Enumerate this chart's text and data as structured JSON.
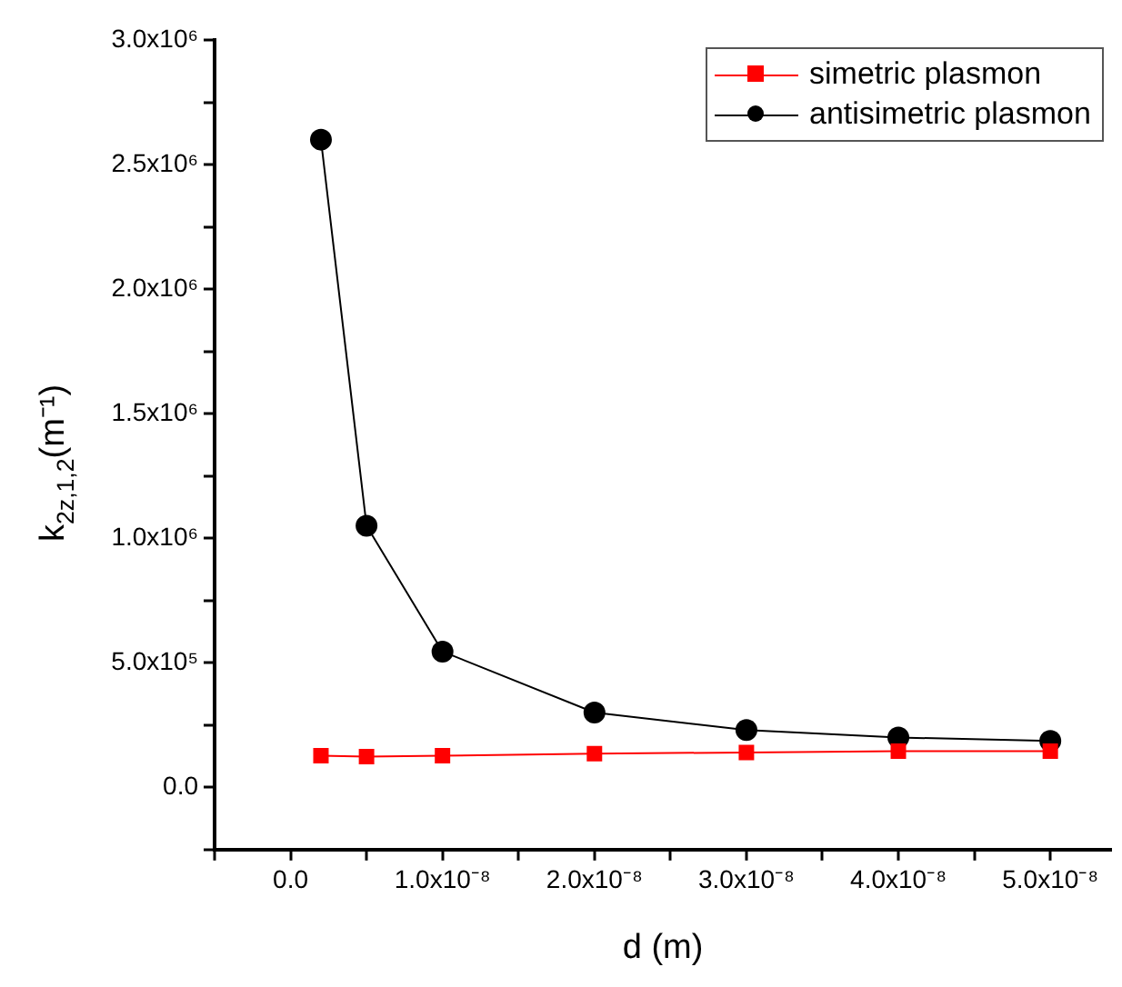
{
  "chart_data": {
    "type": "line",
    "xlabel": "d (m)",
    "ylabel": "k$_{2z,1,2}$(m⁻¹)",
    "x": [
      2e-09,
      5e-09,
      1e-08,
      2e-08,
      3e-08,
      4e-08,
      5e-08
    ],
    "series": [
      {
        "name": "simetric plasmon",
        "color": "#ff0000",
        "marker": "square",
        "values": [
          127000,
          123000,
          127000,
          135000,
          140000,
          145000,
          145000
        ]
      },
      {
        "name": "antisimetric plasmon",
        "color": "#000000",
        "marker": "circle",
        "values": [
          2600000,
          1050000,
          545000,
          300000,
          230000,
          200000,
          186000
        ]
      }
    ],
    "xlim": [
      -5e-09,
      5.4e-08
    ],
    "xticks": [
      {
        "value": -5e-09,
        "label": null
      },
      {
        "value": 0,
        "label": "0.0"
      },
      {
        "value": 5e-09,
        "label": null
      },
      {
        "value": 1e-08,
        "label": "1.0x10⁻⁸"
      },
      {
        "value": 1.5e-08,
        "label": null
      },
      {
        "value": 2e-08,
        "label": "2.0x10⁻⁸"
      },
      {
        "value": 2.5e-08,
        "label": null
      },
      {
        "value": 3e-08,
        "label": "3.0x10⁻⁸"
      },
      {
        "value": 3.5e-08,
        "label": null
      },
      {
        "value": 4e-08,
        "label": "4.0x10⁻⁸"
      },
      {
        "value": 4.5e-08,
        "label": null
      },
      {
        "value": 5e-08,
        "label": "5.0x10⁻⁸"
      }
    ],
    "ylim": [
      -250000,
      3000000
    ],
    "yticks": [
      {
        "value": -250000,
        "label": null
      },
      {
        "value": 0,
        "label": "0.0"
      },
      {
        "value": 250000,
        "label": null
      },
      {
        "value": 500000,
        "label": "5.0x10⁵"
      },
      {
        "value": 750000,
        "label": null
      },
      {
        "value": 1000000,
        "label": "1.0x10⁶"
      },
      {
        "value": 1250000,
        "label": null
      },
      {
        "value": 1500000,
        "label": "1.5x10⁶"
      },
      {
        "value": 1750000,
        "label": null
      },
      {
        "value": 2000000,
        "label": "2.0x10⁶"
      },
      {
        "value": 2250000,
        "label": null
      },
      {
        "value": 2500000,
        "label": "2.5x10⁶"
      },
      {
        "value": 2750000,
        "label": null
      },
      {
        "value": 3000000,
        "label": "3.0x10⁶"
      }
    ],
    "grid": false,
    "legend": "top right"
  }
}
